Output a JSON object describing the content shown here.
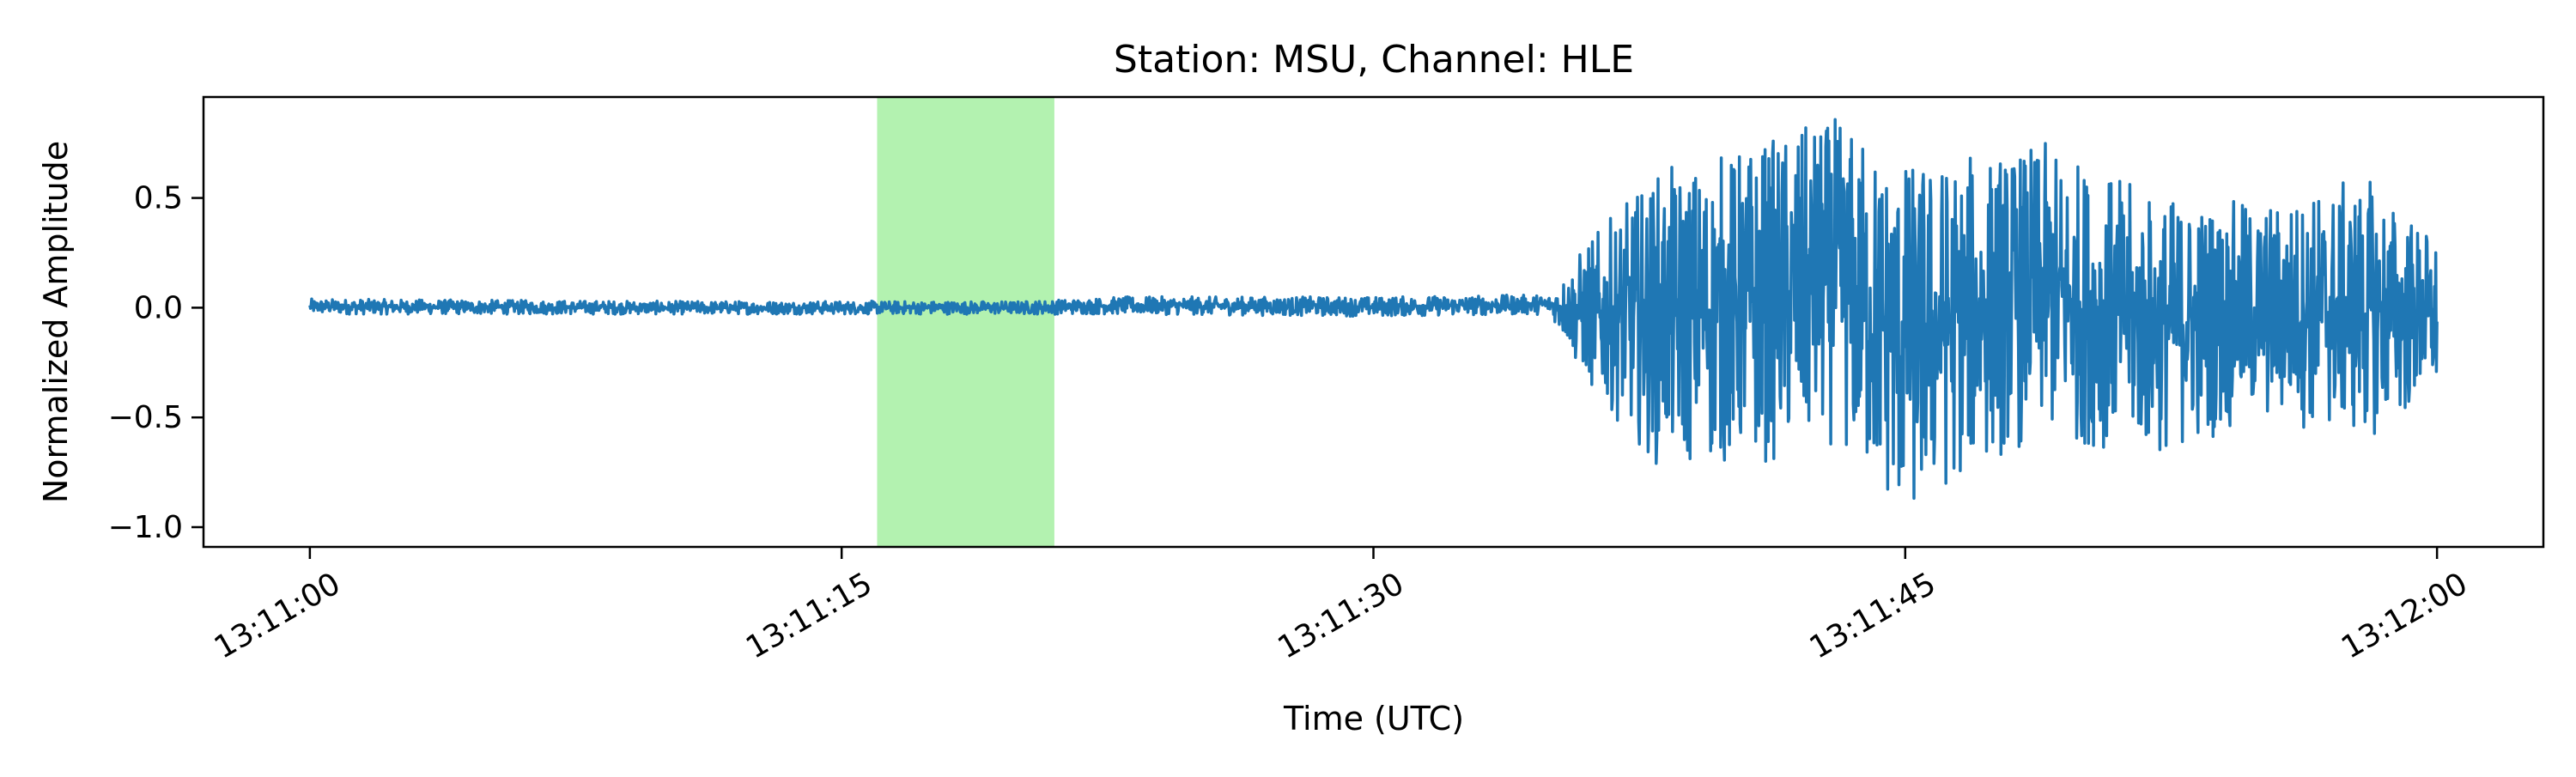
{
  "chart_data": {
    "type": "line",
    "title": "Station: MSU, Channel: HLE",
    "xlabel": "Time (UTC)",
    "ylabel": "Normalized Amplitude",
    "x_range": [
      "13:10:57",
      "13:12:03"
    ],
    "ylim": [
      -1.09,
      0.96
    ],
    "x_ticks": [
      "13:11:00",
      "13:11:15",
      "13:11:30",
      "13:11:45",
      "13:12:00"
    ],
    "y_ticks": [
      {
        "value": 0.5,
        "label": "0.5"
      },
      {
        "value": 0.0,
        "label": "0.0"
      },
      {
        "value": -0.5,
        "label": "−0.5"
      },
      {
        "value": -1.0,
        "label": "−1.0"
      }
    ],
    "grid": false,
    "legend": "none",
    "highlight_window": {
      "start": "13:11:16",
      "end": "13:11:21",
      "color": "#b3f2b0"
    },
    "series": [
      {
        "color": "#1f77b4",
        "start": "13:11:00",
        "end": "13:12:00",
        "envelope": [
          {
            "t": "13:11:00",
            "min": -0.03,
            "max": 0.04
          },
          {
            "t": "13:11:10",
            "min": -0.03,
            "max": 0.03
          },
          {
            "t": "13:11:20",
            "min": -0.03,
            "max": 0.03
          },
          {
            "t": "13:11:23",
            "min": -0.03,
            "max": 0.05
          },
          {
            "t": "13:11:30",
            "min": -0.04,
            "max": 0.05
          },
          {
            "t": "13:11:35",
            "min": -0.03,
            "max": 0.06
          },
          {
            "t": "13:11:36",
            "min": -0.35,
            "max": 0.3
          },
          {
            "t": "13:11:38",
            "min": -0.72,
            "max": 0.62
          },
          {
            "t": "13:11:40",
            "min": -0.72,
            "max": 0.72
          },
          {
            "t": "13:11:42",
            "min": -0.7,
            "max": 0.82
          },
          {
            "t": "13:11:43",
            "min": -0.62,
            "max": 0.87
          },
          {
            "t": "13:11:45",
            "min": -1.0,
            "max": 0.68
          },
          {
            "t": "13:11:47",
            "min": -0.72,
            "max": 0.7
          },
          {
            "t": "13:11:49",
            "min": -0.6,
            "max": 0.75
          },
          {
            "t": "13:11:52",
            "min": -0.68,
            "max": 0.52
          },
          {
            "t": "13:11:55",
            "min": -0.52,
            "max": 0.48
          },
          {
            "t": "13:11:58",
            "min": -0.6,
            "max": 0.6
          },
          {
            "t": "13:12:00",
            "min": -0.42,
            "max": 0.32
          }
        ]
      }
    ]
  }
}
